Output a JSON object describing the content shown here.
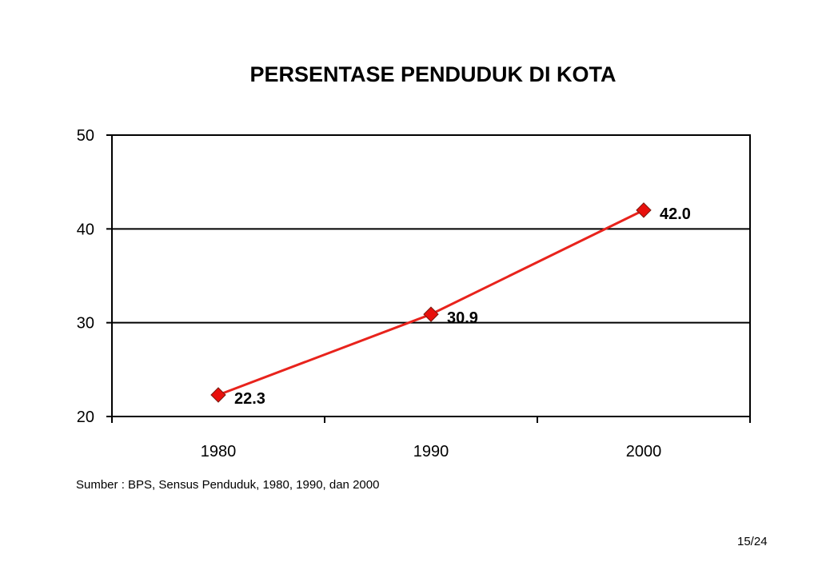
{
  "chart_data": {
    "type": "line",
    "title": "PERSENTASE PENDUDUK DI KOTA",
    "categories": [
      "1980",
      "1990",
      "2000"
    ],
    "series": [
      {
        "values": [
          22.3,
          30.9,
          42.0
        ],
        "labels": [
          "22.3",
          "30.9",
          "42.0"
        ]
      }
    ],
    "ylim": [
      20,
      50
    ],
    "yticks": [
      "20",
      "30",
      "40",
      "50"
    ],
    "xlabel": "",
    "ylabel": "",
    "grid": true,
    "line_color": "#e8231c",
    "marker_color": "#e8100c",
    "marker": "diamond"
  },
  "source": "Sumber : BPS, Sensus Penduduk, 1980, 1990, dan 2000",
  "page_number": "15/24"
}
